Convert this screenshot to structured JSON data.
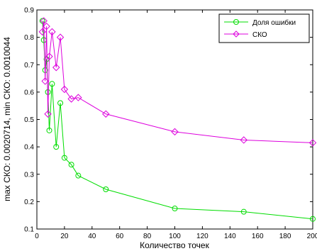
{
  "chart_data": {
    "type": "line",
    "title": "",
    "xlabel": "Количество точек",
    "ylabel": "max СКО: 0.0020714, min СКО: 0.0010044",
    "xlim": [
      0,
      200
    ],
    "ylim": [
      0.1,
      0.9
    ],
    "xticks": [
      0,
      20,
      40,
      60,
      80,
      100,
      120,
      140,
      160,
      180,
      200
    ],
    "yticks": [
      0.1,
      0.2,
      0.3,
      0.4,
      0.5,
      0.6,
      0.7,
      0.8,
      0.9
    ],
    "xtick_labels": [
      "0",
      "20",
      "40",
      "60",
      "80",
      "100",
      "120",
      "140",
      "160",
      "180",
      "200"
    ],
    "ytick_labels": [
      "0.1",
      "0.2",
      "0.3",
      "0.4",
      "0.5",
      "0.6",
      "0.7",
      "0.8",
      "0.9"
    ],
    "grid": false,
    "legend_position": "top-right",
    "series": [
      {
        "name": "Доля ошибки",
        "color": "#00dd00",
        "marker": "circle",
        "x": [
          4,
          5,
          6,
          7,
          8,
          9,
          11,
          14,
          17,
          20,
          25,
          30,
          50,
          100,
          150,
          200
        ],
        "y": [
          0.86,
          0.79,
          0.68,
          0.72,
          0.6,
          0.46,
          0.63,
          0.4,
          0.56,
          0.36,
          0.335,
          0.295,
          0.245,
          0.175,
          0.163,
          0.137
        ]
      },
      {
        "name": "СКО",
        "color": "#dd00dd",
        "marker": "diamond",
        "x": [
          4,
          5,
          6,
          7,
          8,
          9,
          11,
          14,
          17,
          20,
          25,
          30,
          50,
          100,
          150,
          200
        ],
        "y": [
          0.82,
          0.86,
          0.64,
          0.84,
          0.52,
          0.73,
          0.82,
          0.69,
          0.8,
          0.61,
          0.575,
          0.58,
          0.52,
          0.455,
          0.425,
          0.415
        ]
      }
    ]
  }
}
